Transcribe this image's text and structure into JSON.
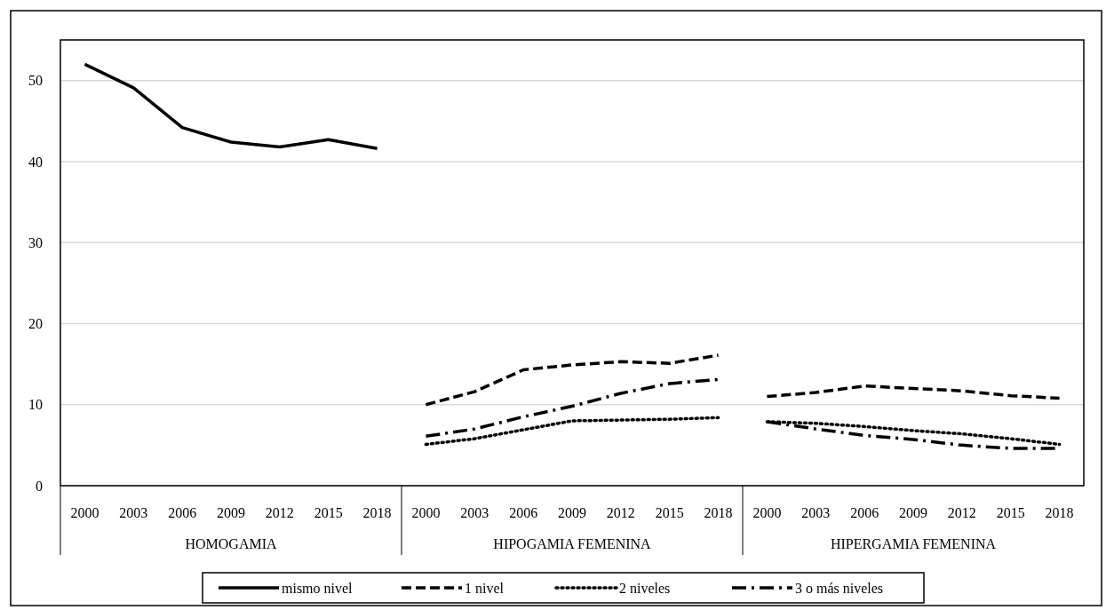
{
  "chart_data": {
    "type": "line",
    "categories": [
      "2000",
      "2003",
      "2006",
      "2009",
      "2012",
      "2015",
      "2018",
      "2000",
      "2003",
      "2006",
      "2009",
      "2012",
      "2015",
      "2018",
      "2000",
      "2003",
      "2006",
      "2009",
      "2012",
      "2015",
      "2018"
    ],
    "annotations": [
      "HOMOGAMIA",
      "HIPOGAMIA FEMENINA",
      "HIPERGAMIA FEMENINA"
    ],
    "series": [
      {
        "name": "mismo nivel",
        "color": "#000000",
        "line_style": "solid",
        "values": [
          52.0,
          49.1,
          44.2,
          42.4,
          41.8,
          42.7,
          41.6,
          null,
          null,
          null,
          null,
          null,
          null,
          null,
          null,
          null,
          null,
          null,
          null,
          null,
          null
        ]
      },
      {
        "name": "1 nivel",
        "color": "#000000",
        "line_style": "dashed",
        "values": [
          null,
          null,
          null,
          null,
          null,
          null,
          null,
          10.0,
          11.6,
          14.3,
          14.9,
          15.3,
          15.1,
          16.1,
          11.0,
          11.5,
          12.3,
          12.0,
          11.7,
          11.1,
          10.8
        ]
      },
      {
        "name": "2  niveles",
        "color": "#000000",
        "line_style": "dotted",
        "values": [
          null,
          null,
          null,
          null,
          null,
          null,
          null,
          5.1,
          5.8,
          6.9,
          8.0,
          8.1,
          8.2,
          8.4,
          7.9,
          7.7,
          7.3,
          6.8,
          6.4,
          5.8,
          5.1
        ]
      },
      {
        "name": "3 o más niveles",
        "color": "#000000",
        "line_style": "dashdot",
        "values": [
          null,
          null,
          null,
          null,
          null,
          null,
          null,
          6.1,
          7.0,
          8.5,
          9.8,
          11.4,
          12.6,
          13.1,
          7.9,
          7.0,
          6.2,
          5.7,
          5.0,
          4.6,
          4.6
        ]
      }
    ],
    "ylim": [
      0,
      55
    ],
    "yticks": [
      0,
      10,
      20,
      30,
      40,
      50
    ],
    "grid": "y",
    "legend": "bottom"
  }
}
